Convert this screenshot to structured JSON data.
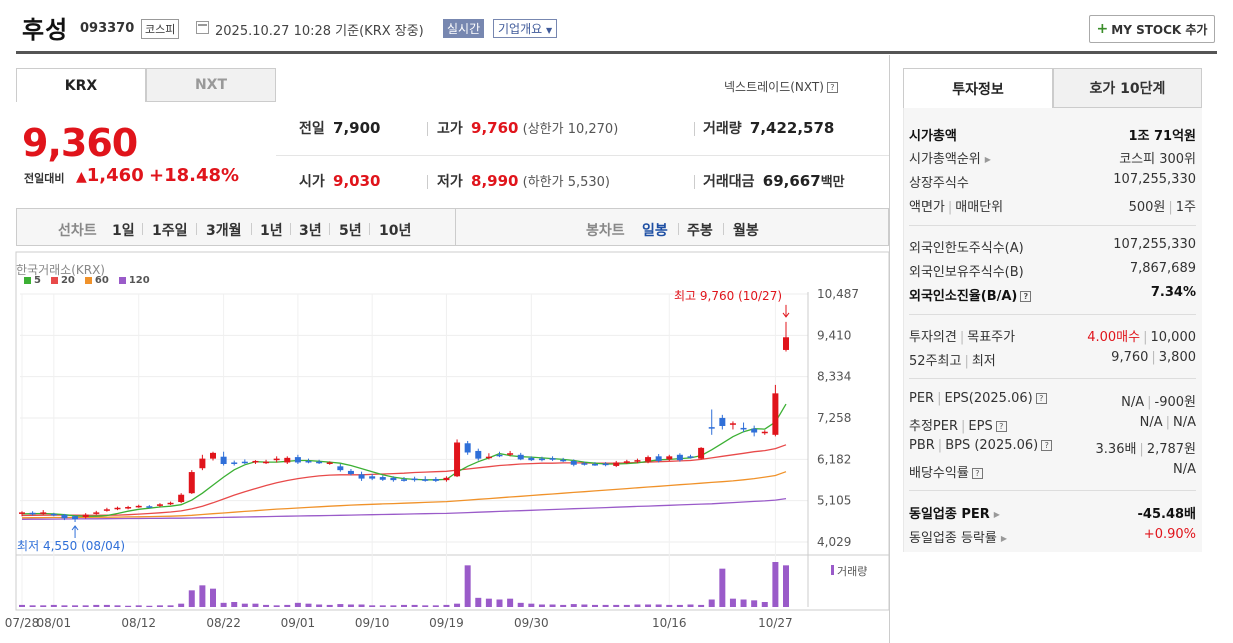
{
  "header": {
    "name": "후성",
    "code": "093370",
    "market": "코스피",
    "datetime": "2025.10.27 10:28",
    "basis": "기준(KRX 장중)",
    "realtime_badge": "실시간",
    "company_info": "기업개요",
    "mystock_label": "MY STOCK 추가"
  },
  "tabs": {
    "krx": "KRX",
    "nxt": "NXT",
    "nxt_link": "넥스트레이드(NXT)"
  },
  "price": {
    "current": "9,360",
    "prev_label": "전일대비",
    "change": "1,460",
    "change_pct": "+18.48%"
  },
  "quote": {
    "prev_close": {
      "label": "전일",
      "value": "7,900"
    },
    "high": {
      "label": "고가",
      "value": "9,760",
      "sub_label": "(상한가",
      "sub_value": "10,270)"
    },
    "volume": {
      "label": "거래량",
      "value": "7,422,578"
    },
    "open": {
      "label": "시가",
      "value": "9,030"
    },
    "low": {
      "label": "저가",
      "value": "8,990",
      "sub_label": "(하한가",
      "sub_value": "5,530)"
    },
    "amount": {
      "label": "거래대금",
      "value": "69,667",
      "unit": "백만"
    }
  },
  "period_bar": {
    "line_label": "선차트",
    "line_items": [
      "1일",
      "1주일",
      "3개월",
      "1년",
      "3년",
      "5년",
      "10년"
    ],
    "candle_label": "봉차트",
    "candle_items": [
      "일봉",
      "주봉",
      "월봉"
    ],
    "active_candle": "일봉"
  },
  "chart_data": {
    "type": "candlestick",
    "title": "한국거래소(KRX)",
    "legend": [
      {
        "name": "5",
        "color": "#3cb034"
      },
      {
        "name": "20",
        "color": "#e84a4a"
      },
      {
        "name": "60",
        "color": "#f0922a"
      },
      {
        "name": "120",
        "color": "#9a5bc9"
      }
    ],
    "y_ticks": [
      "10,487",
      "9,410",
      "8,334",
      "7,258",
      "6,182",
      "5,105",
      "4,029"
    ],
    "ylim": [
      4029,
      10487
    ],
    "x_labels": [
      "07/28",
      "08/01",
      "08/12",
      "08/22",
      "09/01",
      "09/10",
      "09/19",
      "09/30",
      "10/16",
      "10/27"
    ],
    "max_annotation": "최고 9,760 (10/27)",
    "min_annotation": "최저 4,550 (08/04)",
    "volume_label": "거래량",
    "candles": [
      {
        "o": 4780,
        "h": 4830,
        "l": 4700,
        "c": 4800,
        "up": true
      },
      {
        "o": 4790,
        "h": 4830,
        "l": 4720,
        "c": 4760,
        "up": false
      },
      {
        "o": 4780,
        "h": 4860,
        "l": 4740,
        "c": 4800,
        "up": true
      },
      {
        "o": 4760,
        "h": 4790,
        "l": 4700,
        "c": 4740,
        "up": false
      },
      {
        "o": 4740,
        "h": 4760,
        "l": 4600,
        "c": 4650,
        "up": false
      },
      {
        "o": 4700,
        "h": 4720,
        "l": 4550,
        "c": 4620,
        "up": false
      },
      {
        "o": 4680,
        "h": 4780,
        "l": 4640,
        "c": 4740,
        "up": true
      },
      {
        "o": 4780,
        "h": 4840,
        "l": 4740,
        "c": 4800,
        "up": true
      },
      {
        "o": 4860,
        "h": 4920,
        "l": 4820,
        "c": 4880,
        "up": true
      },
      {
        "o": 4900,
        "h": 4950,
        "l": 4860,
        "c": 4920,
        "up": true
      },
      {
        "o": 4920,
        "h": 4970,
        "l": 4880,
        "c": 4940,
        "up": true
      },
      {
        "o": 4960,
        "h": 5000,
        "l": 4920,
        "c": 4970,
        "up": true
      },
      {
        "o": 4960,
        "h": 4990,
        "l": 4910,
        "c": 4950,
        "up": false
      },
      {
        "o": 4970,
        "h": 5040,
        "l": 4940,
        "c": 5010,
        "up": true
      },
      {
        "o": 5020,
        "h": 5080,
        "l": 4990,
        "c": 5050,
        "up": true
      },
      {
        "o": 5070,
        "h": 5300,
        "l": 5040,
        "c": 5260,
        "up": true
      },
      {
        "o": 5300,
        "h": 5900,
        "l": 5280,
        "c": 5850,
        "up": true
      },
      {
        "o": 5950,
        "h": 6300,
        "l": 5900,
        "c": 6200,
        "up": true
      },
      {
        "o": 6200,
        "h": 6380,
        "l": 6150,
        "c": 6350,
        "up": true
      },
      {
        "o": 6250,
        "h": 6380,
        "l": 6020,
        "c": 6060,
        "up": false
      },
      {
        "o": 6100,
        "h": 6150,
        "l": 6020,
        "c": 6080,
        "up": false
      },
      {
        "o": 6120,
        "h": 6180,
        "l": 6060,
        "c": 6100,
        "up": false
      },
      {
        "o": 6100,
        "h": 6160,
        "l": 6060,
        "c": 6140,
        "up": true
      },
      {
        "o": 6100,
        "h": 6170,
        "l": 6060,
        "c": 6120,
        "up": true
      },
      {
        "o": 6160,
        "h": 6260,
        "l": 6100,
        "c": 6200,
        "up": true
      },
      {
        "o": 6100,
        "h": 6260,
        "l": 6060,
        "c": 6220,
        "up": true
      },
      {
        "o": 6240,
        "h": 6300,
        "l": 6060,
        "c": 6100,
        "up": false
      },
      {
        "o": 6140,
        "h": 6200,
        "l": 6080,
        "c": 6100,
        "up": false
      },
      {
        "o": 6120,
        "h": 6170,
        "l": 6060,
        "c": 6080,
        "up": false
      },
      {
        "o": 6090,
        "h": 6130,
        "l": 6040,
        "c": 6100,
        "up": true
      },
      {
        "o": 6000,
        "h": 6060,
        "l": 5860,
        "c": 5900,
        "up": false
      },
      {
        "o": 5880,
        "h": 5930,
        "l": 5760,
        "c": 5800,
        "up": false
      },
      {
        "o": 5790,
        "h": 5860,
        "l": 5620,
        "c": 5680,
        "up": false
      },
      {
        "o": 5740,
        "h": 5800,
        "l": 5640,
        "c": 5680,
        "up": false
      },
      {
        "o": 5720,
        "h": 5760,
        "l": 5620,
        "c": 5650,
        "up": false
      },
      {
        "o": 5700,
        "h": 5740,
        "l": 5600,
        "c": 5640,
        "up": false
      },
      {
        "o": 5660,
        "h": 5720,
        "l": 5600,
        "c": 5660,
        "up": false
      },
      {
        "o": 5680,
        "h": 5730,
        "l": 5600,
        "c": 5640,
        "up": false
      },
      {
        "o": 5650,
        "h": 5740,
        "l": 5600,
        "c": 5660,
        "up": false
      },
      {
        "o": 5670,
        "h": 5720,
        "l": 5590,
        "c": 5620,
        "up": false
      },
      {
        "o": 5640,
        "h": 5740,
        "l": 5600,
        "c": 5700,
        "up": true
      },
      {
        "o": 5740,
        "h": 6700,
        "l": 5720,
        "c": 6620,
        "up": true
      },
      {
        "o": 6600,
        "h": 6660,
        "l": 6300,
        "c": 6360,
        "up": false
      },
      {
        "o": 6400,
        "h": 6460,
        "l": 6150,
        "c": 6200,
        "up": false
      },
      {
        "o": 6240,
        "h": 6340,
        "l": 6180,
        "c": 6250,
        "up": true
      },
      {
        "o": 6300,
        "h": 6380,
        "l": 6240,
        "c": 6280,
        "up": false
      },
      {
        "o": 6320,
        "h": 6400,
        "l": 6260,
        "c": 6340,
        "up": true
      },
      {
        "o": 6300,
        "h": 6350,
        "l": 6160,
        "c": 6180,
        "up": false
      },
      {
        "o": 6220,
        "h": 6260,
        "l": 6140,
        "c": 6160,
        "up": false
      },
      {
        "o": 6200,
        "h": 6250,
        "l": 6130,
        "c": 6170,
        "up": false
      },
      {
        "o": 6210,
        "h": 6260,
        "l": 6140,
        "c": 6180,
        "up": false
      },
      {
        "o": 6170,
        "h": 6220,
        "l": 6110,
        "c": 6160,
        "up": false
      },
      {
        "o": 6140,
        "h": 6180,
        "l": 6000,
        "c": 6040,
        "up": false
      },
      {
        "o": 6080,
        "h": 6120,
        "l": 6020,
        "c": 6060,
        "up": false
      },
      {
        "o": 6060,
        "h": 6110,
        "l": 6010,
        "c": 6050,
        "up": false
      },
      {
        "o": 6070,
        "h": 6110,
        "l": 6000,
        "c": 6030,
        "up": false
      },
      {
        "o": 6010,
        "h": 6140,
        "l": 5980,
        "c": 6100,
        "up": true
      },
      {
        "o": 6100,
        "h": 6170,
        "l": 6060,
        "c": 6130,
        "up": true
      },
      {
        "o": 6140,
        "h": 6200,
        "l": 6080,
        "c": 6160,
        "up": true
      },
      {
        "o": 6120,
        "h": 6280,
        "l": 6080,
        "c": 6240,
        "up": true
      },
      {
        "o": 6260,
        "h": 6320,
        "l": 6100,
        "c": 6140,
        "up": false
      },
      {
        "o": 6180,
        "h": 6300,
        "l": 6140,
        "c": 6260,
        "up": true
      },
      {
        "o": 6300,
        "h": 6340,
        "l": 6120,
        "c": 6160,
        "up": false
      },
      {
        "o": 6250,
        "h": 6300,
        "l": 6200,
        "c": 6260,
        "up": false
      },
      {
        "o": 6200,
        "h": 6500,
        "l": 6180,
        "c": 6480,
        "up": true
      },
      {
        "o": 7000,
        "h": 7480,
        "l": 6820,
        "c": 7020,
        "up": false
      },
      {
        "o": 7260,
        "h": 7340,
        "l": 6960,
        "c": 7050,
        "up": false
      },
      {
        "o": 7100,
        "h": 7170,
        "l": 6960,
        "c": 7120,
        "up": true
      },
      {
        "o": 7000,
        "h": 7140,
        "l": 6890,
        "c": 6960,
        "up": false
      },
      {
        "o": 6980,
        "h": 7060,
        "l": 6780,
        "c": 6880,
        "up": false
      },
      {
        "o": 6880,
        "h": 6940,
        "l": 6820,
        "c": 6900,
        "up": true
      },
      {
        "o": 6820,
        "h": 8120,
        "l": 6780,
        "c": 7900,
        "up": true
      },
      {
        "o": 9030,
        "h": 9760,
        "l": 8990,
        "c": 9360,
        "up": true
      }
    ],
    "ma5": [
      4760,
      4765,
      4770,
      4760,
      4740,
      4710,
      4700,
      4700,
      4720,
      4770,
      4830,
      4880,
      4910,
      4940,
      4960,
      5000,
      5120,
      5300,
      5510,
      5720,
      5910,
      6040,
      6120,
      6110,
      6110,
      6130,
      6150,
      6150,
      6130,
      6110,
      6080,
      6020,
      5940,
      5860,
      5780,
      5720,
      5680,
      5660,
      5650,
      5650,
      5660,
      5850,
      6000,
      6120,
      6220,
      6330,
      6280,
      6250,
      6240,
      6220,
      6200,
      6180,
      6150,
      6110,
      6080,
      6060,
      6060,
      6070,
      6090,
      6130,
      6170,
      6180,
      6200,
      6220,
      6280,
      6430,
      6600,
      6770,
      6900,
      6980,
      6970,
      7150,
      7620
    ],
    "ma20": [
      4720,
      4725,
      4728,
      4730,
      4730,
      4728,
      4725,
      4724,
      4726,
      4730,
      4740,
      4755,
      4770,
      4790,
      4810,
      4840,
      4890,
      4960,
      5050,
      5150,
      5250,
      5340,
      5420,
      5500,
      5570,
      5630,
      5680,
      5720,
      5750,
      5770,
      5780,
      5780,
      5780,
      5790,
      5800,
      5810,
      5820,
      5840,
      5850,
      5860,
      5870,
      5900,
      5930,
      5960,
      5990,
      6020,
      6040,
      6060,
      6070,
      6080,
      6080,
      6090,
      6090,
      6090,
      6080,
      6080,
      6080,
      6090,
      6100,
      6110,
      6120,
      6130,
      6140,
      6150,
      6180,
      6220,
      6260,
      6300,
      6340,
      6380,
      6410,
      6460,
      6560
    ],
    "ma60": [
      4660,
      4662,
      4664,
      4666,
      4668,
      4670,
      4672,
      4674,
      4676,
      4678,
      4682,
      4686,
      4690,
      4695,
      4700,
      4710,
      4725,
      4745,
      4765,
      4785,
      4805,
      4825,
      4845,
      4865,
      4885,
      4900,
      4915,
      4930,
      4945,
      4960,
      4975,
      4990,
      5000,
      5010,
      5020,
      5030,
      5040,
      5050,
      5060,
      5070,
      5080,
      5100,
      5120,
      5140,
      5160,
      5180,
      5200,
      5220,
      5240,
      5260,
      5280,
      5300,
      5320,
      5340,
      5360,
      5380,
      5400,
      5420,
      5440,
      5460,
      5480,
      5500,
      5520,
      5540,
      5560,
      5580,
      5600,
      5620,
      5650,
      5680,
      5720,
      5760,
      5860
    ],
    "ma120": [
      4620,
      4622,
      4624,
      4626,
      4628,
      4630,
      4632,
      4634,
      4636,
      4638,
      4640,
      4642,
      4644,
      4646,
      4648,
      4650,
      4655,
      4660,
      4665,
      4670,
      4675,
      4680,
      4685,
      4690,
      4695,
      4700,
      4705,
      4710,
      4715,
      4720,
      4725,
      4730,
      4735,
      4740,
      4745,
      4750,
      4755,
      4760,
      4765,
      4770,
      4775,
      4785,
      4795,
      4805,
      4815,
      4825,
      4835,
      4845,
      4855,
      4865,
      4875,
      4885,
      4895,
      4905,
      4915,
      4925,
      4935,
      4945,
      4955,
      4965,
      4975,
      4985,
      4995,
      5005,
      5015,
      5025,
      5040,
      5055,
      5070,
      5085,
      5100,
      5120,
      5160
    ],
    "volumes": [
      5,
      4,
      4,
      5,
      4,
      4,
      4,
      5,
      5,
      4,
      3,
      4,
      3,
      4,
      4,
      8,
      40,
      52,
      44,
      10,
      12,
      8,
      8,
      5,
      4,
      5,
      10,
      8,
      6,
      5,
      7,
      6,
      6,
      4,
      4,
      4,
      5,
      5,
      4,
      4,
      5,
      8,
      100,
      22,
      20,
      18,
      20,
      10,
      8,
      6,
      6,
      5,
      7,
      6,
      5,
      5,
      5,
      5,
      6,
      6,
      6,
      5,
      5,
      6,
      5,
      18,
      92,
      20,
      18,
      16,
      12,
      108,
      100
    ]
  },
  "right_tabs": {
    "info": "투자정보",
    "hoga": "호가 10단계"
  },
  "invest": {
    "market_cap": {
      "label": "시가총액",
      "value": "1조 71억원"
    },
    "cap_rank": {
      "label": "시가총액순위",
      "value": "코스피 300위"
    },
    "shares": {
      "label": "상장주식수",
      "value": "107,255,330"
    },
    "par": {
      "label": "액면가",
      "label2": "매매단위",
      "value": "500원",
      "value2": "1주"
    },
    "foreign_limit": {
      "label": "외국인한도주식수(A)",
      "value": "107,255,330"
    },
    "foreign_hold": {
      "label": "외국인보유주식수(B)",
      "value": "7,867,689"
    },
    "foreign_ratio": {
      "label": "외국인소진율(B/A)",
      "value": "7.34%"
    },
    "opinion": {
      "label": "투자의견",
      "label2": "목표주가",
      "value": "4.00매수",
      "value2": "10,000"
    },
    "week52": {
      "label": "52주최고",
      "label2": "최저",
      "value": "9,760",
      "value2": "3,800"
    },
    "per": {
      "label": "PER",
      "label2": "EPS(2025.06)",
      "value": "N/A",
      "value2": "-900원"
    },
    "est_per": {
      "label": "추정PER",
      "label2": "EPS",
      "value": "N/A",
      "value2": "N/A"
    },
    "pbr": {
      "label": "PBR",
      "label2": "BPS (2025.06)",
      "value": "3.36배",
      "value2": "2,787원"
    },
    "dividend": {
      "label": "배당수익률",
      "value": "N/A"
    },
    "sector_per": {
      "label": "동일업종 PER",
      "value": "-45.48배"
    },
    "sector_rate": {
      "label": "동일업종 등락률",
      "value": "+0.90%"
    }
  }
}
